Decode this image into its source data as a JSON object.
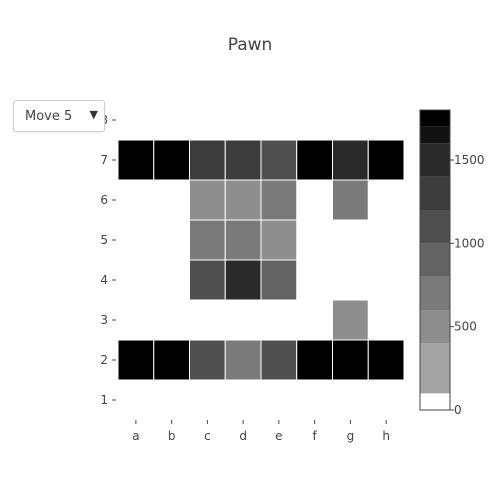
{
  "title": "Pawn",
  "dropdown": {
    "selected": "Move 5",
    "icon": "triangle-down-icon"
  },
  "chart_data": {
    "type": "heatmap",
    "title": "Pawn",
    "x": [
      "a",
      "b",
      "c",
      "d",
      "e",
      "f",
      "g",
      "h"
    ],
    "y": [
      "1",
      "2",
      "3",
      "4",
      "5",
      "6",
      "7",
      "8"
    ],
    "z": [
      [
        null,
        null,
        null,
        null,
        null,
        null,
        null,
        null
      ],
      [
        1800,
        1800,
        1050,
        650,
        1150,
        1800,
        1800,
        1800
      ],
      [
        null,
        null,
        null,
        null,
        null,
        null,
        450,
        null
      ],
      [
        null,
        null,
        1150,
        1500,
        900,
        null,
        null,
        null
      ],
      [
        null,
        null,
        650,
        650,
        450,
        null,
        null,
        null
      ],
      [
        null,
        null,
        450,
        450,
        650,
        null,
        650,
        null
      ],
      [
        1800,
        1800,
        1350,
        1350,
        1150,
        1800,
        1450,
        1800
      ],
      [
        null,
        null,
        null,
        null,
        null,
        null,
        null,
        null
      ]
    ],
    "colorscale": {
      "range": [
        0,
        1800
      ],
      "bins": [
        {
          "from": 0,
          "to": 100,
          "color": "#ffffff"
        },
        {
          "from": 100,
          "to": 400,
          "color": "#a4a4a4"
        },
        {
          "from": 400,
          "to": 600,
          "color": "#8e8e8e"
        },
        {
          "from": 600,
          "to": 800,
          "color": "#7a7a7a"
        },
        {
          "from": 800,
          "to": 1000,
          "color": "#636363"
        },
        {
          "from": 1000,
          "to": 1200,
          "color": "#4f4f4f"
        },
        {
          "from": 1200,
          "to": 1400,
          "color": "#3c3c3c"
        },
        {
          "from": 1400,
          "to": 1600,
          "color": "#2a2a2a"
        },
        {
          "from": 1600,
          "to": 1700,
          "color": "#121212"
        },
        {
          "from": 1700,
          "to": 1800,
          "color": "#000000"
        }
      ],
      "ticks": [
        0,
        500,
        1000,
        1500
      ],
      "tick_labels": [
        "0",
        "500",
        "1000",
        "1500"
      ]
    }
  }
}
